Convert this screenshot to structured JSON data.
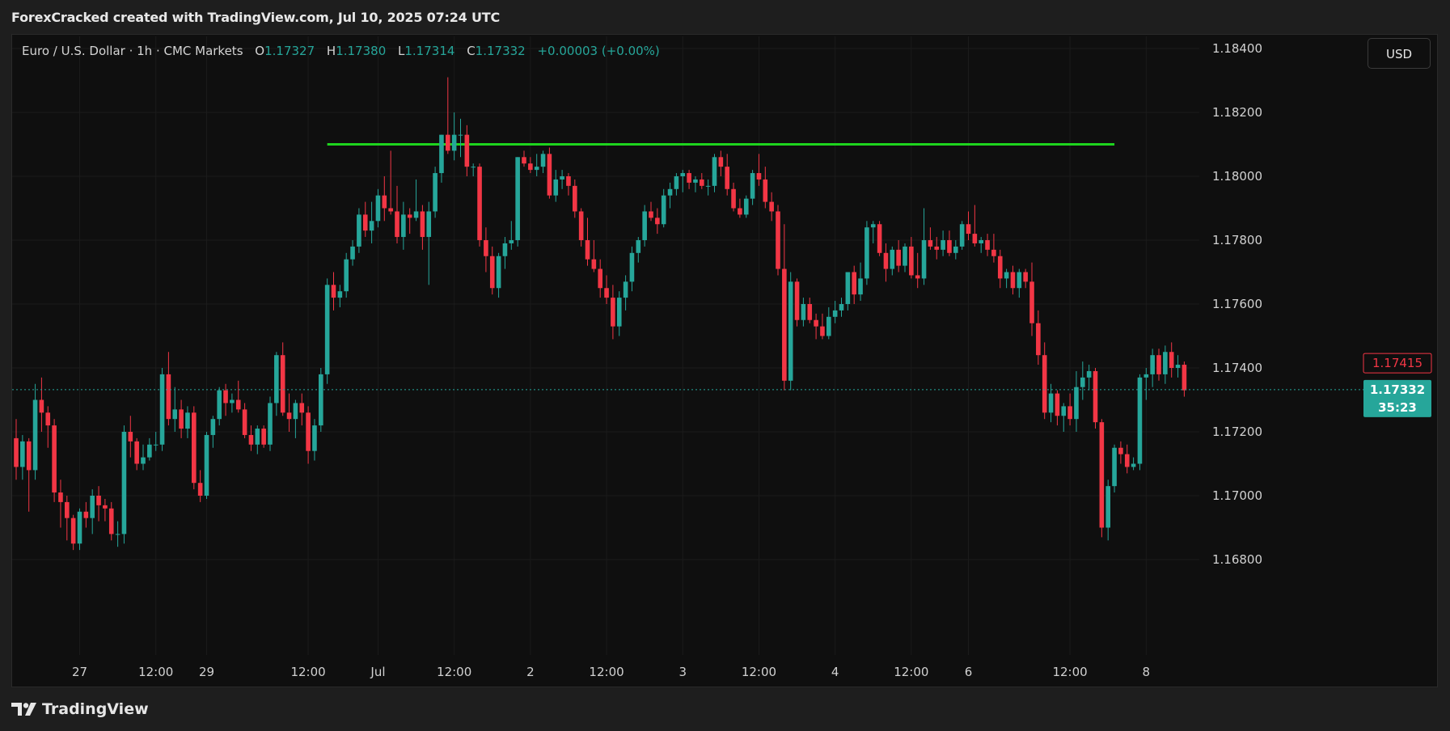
{
  "header": {
    "attribution": "ForexCracked created with TradingView.com, Jul 10, 2025 07:24 UTC"
  },
  "legend": {
    "symbol": "Euro / U.S. Dollar · 1h · CMC Markets",
    "open_label": "O",
    "open": "1.17327",
    "high_label": "H",
    "high": "1.17380",
    "low_label": "L",
    "low": "1.17314",
    "close_label": "C",
    "close": "1.17332",
    "change": "+0.00003 (+0.00%)"
  },
  "currency_button": "USD",
  "price_tags": {
    "level": "1.17415",
    "last": "1.17332",
    "countdown": "35:23"
  },
  "footer": {
    "brand": "TradingView"
  },
  "colors": {
    "up": "#26a69a",
    "down": "#f23645",
    "resistance": "#1ed41e",
    "background": "#0f0f0f",
    "grid": "#1b1b1b"
  },
  "chart_data": {
    "type": "candlestick",
    "title": "",
    "symbol": "EUR/USD",
    "interval": "1h",
    "ylim": [
      1.166,
      1.1855
    ],
    "y_ticks": [
      "1.18400",
      "1.18200",
      "1.18000",
      "1.17800",
      "1.17600",
      "1.17400",
      "1.17200",
      "1.17000",
      "1.16800"
    ],
    "x_ticks": [
      {
        "label": "27",
        "bar": 10
      },
      {
        "label": "12:00",
        "bar": 22
      },
      {
        "label": "29",
        "bar": 30
      },
      {
        "label": "12:00",
        "bar": 46
      },
      {
        "label": "Jul",
        "bar": 57
      },
      {
        "label": "12:00",
        "bar": 69
      },
      {
        "label": "2",
        "bar": 81
      },
      {
        "label": "12:00",
        "bar": 93
      },
      {
        "label": "3",
        "bar": 105
      },
      {
        "label": "12:00",
        "bar": 117
      },
      {
        "label": "4",
        "bar": 129
      },
      {
        "label": "12:00",
        "bar": 141
      },
      {
        "label": "6",
        "bar": 150
      },
      {
        "label": "12:00",
        "bar": 166
      },
      {
        "label": "8",
        "bar": 178
      }
    ],
    "resistance_level": 1.181,
    "resistance_range_bars": [
      49,
      173
    ],
    "level_tag_price": 1.17415,
    "last_price": 1.17332,
    "ohlc": [
      [
        1.1718,
        1.1724,
        1.1705,
        1.1709
      ],
      [
        1.1709,
        1.1719,
        1.1705,
        1.1717
      ],
      [
        1.1717,
        1.1718,
        1.1695,
        1.1708
      ],
      [
        1.1708,
        1.1735,
        1.1705,
        1.173
      ],
      [
        1.173,
        1.1737,
        1.172,
        1.1726
      ],
      [
        1.1726,
        1.1728,
        1.1715,
        1.1722
      ],
      [
        1.1722,
        1.1724,
        1.1698,
        1.1701
      ],
      [
        1.1701,
        1.1705,
        1.169,
        1.1698
      ],
      [
        1.1698,
        1.17,
        1.1686,
        1.1693
      ],
      [
        1.1693,
        1.1694,
        1.1683,
        1.1685
      ],
      [
        1.1685,
        1.1696,
        1.1683,
        1.1695
      ],
      [
        1.1695,
        1.1698,
        1.169,
        1.1693
      ],
      [
        1.1693,
        1.1702,
        1.1688,
        1.17
      ],
      [
        1.17,
        1.1703,
        1.1692,
        1.1697
      ],
      [
        1.1697,
        1.1699,
        1.1692,
        1.1696
      ],
      [
        1.1696,
        1.1698,
        1.1686,
        1.1688
      ],
      [
        1.1688,
        1.1692,
        1.1684,
        1.1688
      ],
      [
        1.1688,
        1.1722,
        1.1685,
        1.172
      ],
      [
        1.172,
        1.1725,
        1.1712,
        1.1717
      ],
      [
        1.1717,
        1.1718,
        1.1708,
        1.171
      ],
      [
        1.171,
        1.1716,
        1.1708,
        1.1712
      ],
      [
        1.1712,
        1.1718,
        1.1711,
        1.1716
      ],
      [
        1.1716,
        1.172,
        1.1714,
        1.1716
      ],
      [
        1.1716,
        1.174,
        1.1714,
        1.1738
      ],
      [
        1.1738,
        1.1745,
        1.1722,
        1.1724
      ],
      [
        1.1724,
        1.1734,
        1.172,
        1.1727
      ],
      [
        1.1727,
        1.173,
        1.1718,
        1.1721
      ],
      [
        1.1721,
        1.1728,
        1.1718,
        1.1726
      ],
      [
        1.1726,
        1.1728,
        1.1702,
        1.1704
      ],
      [
        1.1704,
        1.1708,
        1.1698,
        1.17
      ],
      [
        1.17,
        1.172,
        1.1699,
        1.1719
      ],
      [
        1.1719,
        1.1725,
        1.1715,
        1.1724
      ],
      [
        1.1724,
        1.1734,
        1.1722,
        1.1733
      ],
      [
        1.1733,
        1.1735,
        1.1725,
        1.1729
      ],
      [
        1.1729,
        1.1732,
        1.1726,
        1.173
      ],
      [
        1.173,
        1.1736,
        1.1726,
        1.1727
      ],
      [
        1.1727,
        1.1729,
        1.1718,
        1.1719
      ],
      [
        1.1719,
        1.1722,
        1.1714,
        1.1716
      ],
      [
        1.1716,
        1.1722,
        1.1713,
        1.1721
      ],
      [
        1.1721,
        1.1722,
        1.1715,
        1.1716
      ],
      [
        1.1716,
        1.1731,
        1.1714,
        1.1729
      ],
      [
        1.1729,
        1.1745,
        1.1725,
        1.1744
      ],
      [
        1.1744,
        1.1748,
        1.1725,
        1.1726
      ],
      [
        1.1726,
        1.1732,
        1.172,
        1.1724
      ],
      [
        1.1724,
        1.173,
        1.1718,
        1.1729
      ],
      [
        1.1729,
        1.1732,
        1.1722,
        1.1726
      ],
      [
        1.1726,
        1.1728,
        1.171,
        1.1714
      ],
      [
        1.1714,
        1.1724,
        1.1711,
        1.1722
      ],
      [
        1.1722,
        1.174,
        1.172,
        1.1738
      ],
      [
        1.1738,
        1.1768,
        1.1735,
        1.1766
      ],
      [
        1.1766,
        1.177,
        1.1758,
        1.1762
      ],
      [
        1.1762,
        1.1766,
        1.1759,
        1.1764
      ],
      [
        1.1764,
        1.1776,
        1.1762,
        1.1774
      ],
      [
        1.1774,
        1.178,
        1.1772,
        1.1778
      ],
      [
        1.1778,
        1.179,
        1.1776,
        1.1788
      ],
      [
        1.1788,
        1.1792,
        1.1781,
        1.1783
      ],
      [
        1.1783,
        1.1792,
        1.1779,
        1.1786
      ],
      [
        1.1786,
        1.1796,
        1.1784,
        1.1794
      ],
      [
        1.1794,
        1.18,
        1.1786,
        1.179
      ],
      [
        1.179,
        1.1808,
        1.1788,
        1.1789
      ],
      [
        1.1789,
        1.1797,
        1.1779,
        1.1781
      ],
      [
        1.1781,
        1.1792,
        1.1777,
        1.1788
      ],
      [
        1.1788,
        1.179,
        1.1782,
        1.1787
      ],
      [
        1.1787,
        1.1799,
        1.1786,
        1.1789
      ],
      [
        1.1789,
        1.1791,
        1.1777,
        1.1781
      ],
      [
        1.1781,
        1.1792,
        1.1766,
        1.1789
      ],
      [
        1.1789,
        1.1803,
        1.1787,
        1.1801
      ],
      [
        1.1801,
        1.1813,
        1.1798,
        1.1813
      ],
      [
        1.1813,
        1.1831,
        1.1807,
        1.1808
      ],
      [
        1.1808,
        1.182,
        1.1805,
        1.1813
      ],
      [
        1.1813,
        1.1818,
        1.1806,
        1.1813
      ],
      [
        1.1813,
        1.1816,
        1.18,
        1.1803
      ],
      [
        1.1803,
        1.1804,
        1.18,
        1.1803
      ],
      [
        1.1803,
        1.1804,
        1.1778,
        1.178
      ],
      [
        1.178,
        1.1784,
        1.177,
        1.1775
      ],
      [
        1.1775,
        1.1778,
        1.1763,
        1.1765
      ],
      [
        1.1765,
        1.1776,
        1.1762,
        1.1775
      ],
      [
        1.1775,
        1.1781,
        1.1771,
        1.1779
      ],
      [
        1.1779,
        1.1786,
        1.1777,
        1.178
      ],
      [
        1.178,
        1.1806,
        1.1778,
        1.1806
      ],
      [
        1.1806,
        1.1808,
        1.1803,
        1.1804
      ],
      [
        1.1804,
        1.1806,
        1.1801,
        1.1802
      ],
      [
        1.1802,
        1.1807,
        1.18,
        1.1803
      ],
      [
        1.1803,
        1.1808,
        1.1801,
        1.1807
      ],
      [
        1.1807,
        1.1809,
        1.1793,
        1.1794
      ],
      [
        1.1794,
        1.1802,
        1.1792,
        1.1799
      ],
      [
        1.1799,
        1.1802,
        1.1796,
        1.18
      ],
      [
        1.18,
        1.1801,
        1.1794,
        1.1797
      ],
      [
        1.1797,
        1.1799,
        1.1787,
        1.1789
      ],
      [
        1.1789,
        1.179,
        1.1778,
        1.178
      ],
      [
        1.178,
        1.1787,
        1.1772,
        1.1774
      ],
      [
        1.1774,
        1.178,
        1.177,
        1.1771
      ],
      [
        1.1771,
        1.1774,
        1.1762,
        1.1765
      ],
      [
        1.1765,
        1.1769,
        1.176,
        1.1762
      ],
      [
        1.1762,
        1.1766,
        1.1749,
        1.1753
      ],
      [
        1.1753,
        1.1764,
        1.175,
        1.1762
      ],
      [
        1.1762,
        1.1769,
        1.1758,
        1.1767
      ],
      [
        1.1767,
        1.1778,
        1.1764,
        1.1776
      ],
      [
        1.1776,
        1.1781,
        1.1773,
        1.178
      ],
      [
        1.178,
        1.1791,
        1.1778,
        1.1789
      ],
      [
        1.1789,
        1.1792,
        1.1786,
        1.1787
      ],
      [
        1.1787,
        1.179,
        1.1782,
        1.1785
      ],
      [
        1.1785,
        1.1796,
        1.1784,
        1.1794
      ],
      [
        1.1794,
        1.1798,
        1.179,
        1.1796
      ],
      [
        1.1796,
        1.1801,
        1.1794,
        1.18
      ],
      [
        1.18,
        1.1802,
        1.1795,
        1.1801
      ],
      [
        1.1801,
        1.1802,
        1.1796,
        1.1798
      ],
      [
        1.1798,
        1.18,
        1.1795,
        1.1799
      ],
      [
        1.1799,
        1.1801,
        1.1796,
        1.1797
      ],
      [
        1.1797,
        1.1799,
        1.1794,
        1.1797
      ],
      [
        1.1797,
        1.1807,
        1.1795,
        1.1806
      ],
      [
        1.1806,
        1.1808,
        1.18,
        1.1803
      ],
      [
        1.1803,
        1.1807,
        1.1794,
        1.1796
      ],
      [
        1.1796,
        1.1798,
        1.1789,
        1.179
      ],
      [
        1.179,
        1.1793,
        1.1787,
        1.1788
      ],
      [
        1.1788,
        1.1794,
        1.1787,
        1.1793
      ],
      [
        1.1793,
        1.1802,
        1.1791,
        1.1801
      ],
      [
        1.1801,
        1.1807,
        1.1797,
        1.1799
      ],
      [
        1.1799,
        1.1803,
        1.179,
        1.1792
      ],
      [
        1.1792,
        1.1795,
        1.1786,
        1.1789
      ],
      [
        1.1789,
        1.1791,
        1.1769,
        1.1771
      ],
      [
        1.1771,
        1.1785,
        1.1733,
        1.1736
      ],
      [
        1.1736,
        1.177,
        1.1733,
        1.1767
      ],
      [
        1.1767,
        1.1768,
        1.1753,
        1.1755
      ],
      [
        1.1755,
        1.1762,
        1.1753,
        1.176
      ],
      [
        1.176,
        1.1762,
        1.1754,
        1.1755
      ],
      [
        1.1755,
        1.1757,
        1.1749,
        1.1753
      ],
      [
        1.1753,
        1.1757,
        1.1749,
        1.175
      ],
      [
        1.175,
        1.1759,
        1.1749,
        1.1756
      ],
      [
        1.1756,
        1.1761,
        1.1754,
        1.1758
      ],
      [
        1.1758,
        1.1762,
        1.1756,
        1.176
      ],
      [
        1.176,
        1.177,
        1.1758,
        1.177
      ],
      [
        1.177,
        1.1772,
        1.176,
        1.1763
      ],
      [
        1.1763,
        1.1773,
        1.1761,
        1.1768
      ],
      [
        1.1768,
        1.1786,
        1.1766,
        1.1784
      ],
      [
        1.1784,
        1.1786,
        1.1779,
        1.1785
      ],
      [
        1.1785,
        1.1786,
        1.1775,
        1.1776
      ],
      [
        1.1776,
        1.1779,
        1.1767,
        1.1771
      ],
      [
        1.1771,
        1.1778,
        1.1769,
        1.1777
      ],
      [
        1.1777,
        1.178,
        1.177,
        1.1772
      ],
      [
        1.1772,
        1.1779,
        1.177,
        1.1778
      ],
      [
        1.1778,
        1.1781,
        1.1768,
        1.1769
      ],
      [
        1.1769,
        1.1776,
        1.1765,
        1.1768
      ],
      [
        1.1768,
        1.179,
        1.1766,
        1.178
      ],
      [
        1.178,
        1.1784,
        1.1777,
        1.1778
      ],
      [
        1.1778,
        1.1781,
        1.1774,
        1.1777
      ],
      [
        1.1777,
        1.1783,
        1.1775,
        1.178
      ],
      [
        1.178,
        1.1783,
        1.1775,
        1.1776
      ],
      [
        1.1776,
        1.178,
        1.1774,
        1.1778
      ],
      [
        1.1778,
        1.1786,
        1.1777,
        1.1785
      ],
      [
        1.1785,
        1.1789,
        1.178,
        1.1782
      ],
      [
        1.1782,
        1.1791,
        1.1778,
        1.1779
      ],
      [
        1.1779,
        1.1781,
        1.1776,
        1.178
      ],
      [
        1.178,
        1.1782,
        1.1775,
        1.1777
      ],
      [
        1.1777,
        1.1782,
        1.1773,
        1.1775
      ],
      [
        1.1775,
        1.1777,
        1.1765,
        1.1768
      ],
      [
        1.1768,
        1.1771,
        1.1765,
        1.177
      ],
      [
        1.177,
        1.1772,
        1.1763,
        1.1765
      ],
      [
        1.1765,
        1.1771,
        1.1762,
        1.177
      ],
      [
        1.177,
        1.1771,
        1.1765,
        1.1767
      ],
      [
        1.1767,
        1.1773,
        1.175,
        1.1754
      ],
      [
        1.1754,
        1.1758,
        1.1741,
        1.1744
      ],
      [
        1.1744,
        1.1748,
        1.1724,
        1.1726
      ],
      [
        1.1726,
        1.1735,
        1.1723,
        1.1732
      ],
      [
        1.1732,
        1.1733,
        1.1722,
        1.1725
      ],
      [
        1.1725,
        1.1729,
        1.172,
        1.1728
      ],
      [
        1.1728,
        1.1732,
        1.1722,
        1.1724
      ],
      [
        1.1724,
        1.1739,
        1.172,
        1.1734
      ],
      [
        1.1734,
        1.1742,
        1.173,
        1.1737
      ],
      [
        1.1737,
        1.1741,
        1.1733,
        1.1739
      ],
      [
        1.1739,
        1.174,
        1.1721,
        1.1723
      ],
      [
        1.1723,
        1.1724,
        1.1687,
        1.169
      ],
      [
        1.169,
        1.1705,
        1.1686,
        1.1703
      ],
      [
        1.1703,
        1.1716,
        1.1701,
        1.1715
      ],
      [
        1.1715,
        1.1717,
        1.171,
        1.1713
      ],
      [
        1.1713,
        1.1716,
        1.1707,
        1.1709
      ],
      [
        1.1709,
        1.1712,
        1.1708,
        1.171
      ],
      [
        1.171,
        1.1738,
        1.1708,
        1.1737
      ],
      [
        1.1737,
        1.174,
        1.173,
        1.1738
      ],
      [
        1.1738,
        1.1746,
        1.1734,
        1.1744
      ],
      [
        1.1744,
        1.1746,
        1.1736,
        1.1738
      ],
      [
        1.1738,
        1.1747,
        1.1735,
        1.1745
      ],
      [
        1.1745,
        1.1748,
        1.1737,
        1.174
      ],
      [
        1.174,
        1.1744,
        1.1737,
        1.1741
      ],
      [
        1.1741,
        1.1742,
        1.1731,
        1.1733
      ]
    ]
  }
}
